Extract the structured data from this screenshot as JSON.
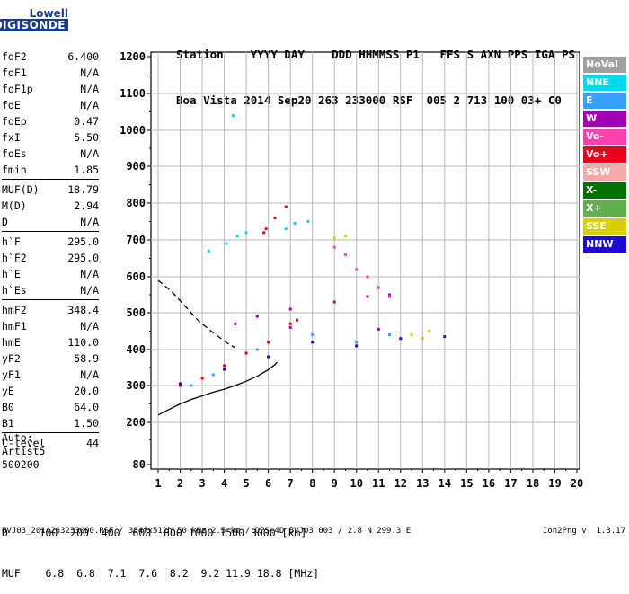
{
  "logo": {
    "line1": "Lowell",
    "line2": "DIGISONDE"
  },
  "header": {
    "labels": "Station    YYYY DAY    DDD HHMMSS P1   FFS S AXN PPS IGA PS",
    "values": "Boa Vista 2014 Sep20 263 233000 RSF  005 2 713 100 03+ C0"
  },
  "params": [
    [
      {
        "name": "foF2",
        "value": "6.400"
      },
      {
        "name": "foF1",
        "value": "N/A"
      },
      {
        "name": "foF1p",
        "value": "N/A"
      },
      {
        "name": "foE",
        "value": "N/A"
      },
      {
        "name": "foEp",
        "value": "0.47"
      },
      {
        "name": "fxI",
        "value": "5.50"
      },
      {
        "name": "foEs",
        "value": "N/A"
      },
      {
        "name": "fmin",
        "value": "1.85"
      }
    ],
    [
      {
        "name": "MUF(D)",
        "value": "18.79"
      },
      {
        "name": "M(D)",
        "value": "2.94"
      },
      {
        "name": "D",
        "value": "N/A"
      }
    ],
    [
      {
        "name": "h`F",
        "value": "295.0"
      },
      {
        "name": "h`F2",
        "value": "295.0"
      },
      {
        "name": "h`E",
        "value": "N/A"
      },
      {
        "name": "h`Es",
        "value": "N/A"
      }
    ],
    [
      {
        "name": "hmF2",
        "value": "348.4"
      },
      {
        "name": "hmF1",
        "value": "N/A"
      },
      {
        "name": "hmE",
        "value": "110.0"
      },
      {
        "name": "yF2",
        "value": "58.9"
      },
      {
        "name": "yF1",
        "value": "N/A"
      },
      {
        "name": "yE",
        "value": "20.0"
      },
      {
        "name": "B0",
        "value": "64.0"
      },
      {
        "name": "B1",
        "value": "1.50"
      }
    ],
    [
      {
        "name": "C-level",
        "value": "44"
      }
    ]
  ],
  "auto": {
    "line1": "Auto:",
    "line2": "Artist5",
    "line3": "500200"
  },
  "legend": [
    {
      "label": "NoVal",
      "color": "#a0a0a0"
    },
    {
      "label": "NNE",
      "color": "#00d8f0"
    },
    {
      "label": "E",
      "color": "#3aa0ff"
    },
    {
      "label": "W",
      "color": "#a000b0"
    },
    {
      "label": "Vo-",
      "color": "#ff40b0"
    },
    {
      "label": "Vo+",
      "color": "#e8001c"
    },
    {
      "label": "SSW",
      "color": "#f4a8a8"
    },
    {
      "label": "X-",
      "color": "#007000"
    },
    {
      "label": "X+",
      "color": "#60b050"
    },
    {
      "label": "SSE",
      "color": "#d8d000"
    },
    {
      "label": "NNW",
      "color": "#1c0ad0"
    }
  ],
  "chart_data": {
    "type": "scatter",
    "xlabel": "",
    "ylabel": "",
    "xlim": [
      1,
      20
    ],
    "ylim": [
      80,
      1200
    ],
    "x_ticks": [
      1,
      2,
      3,
      4,
      5,
      6,
      7,
      8,
      9,
      10,
      11,
      12,
      13,
      14,
      15,
      16,
      17,
      18,
      19,
      20
    ],
    "y_ticks": [
      80,
      200,
      300,
      400,
      500,
      600,
      700,
      800,
      900,
      1000,
      1100,
      1200
    ],
    "grid": true,
    "series": [
      {
        "name": "NNE",
        "color": "#00d8f0",
        "points": [
          [
            4.1,
            690
          ],
          [
            4.6,
            710
          ],
          [
            5.0,
            720
          ],
          [
            6.8,
            730
          ],
          [
            7.2,
            745
          ],
          [
            7.8,
            750
          ],
          [
            4.4,
            1040
          ],
          [
            3.3,
            670
          ]
        ]
      },
      {
        "name": "E",
        "color": "#3aa0ff",
        "points": [
          [
            2.5,
            300
          ],
          [
            3.5,
            330
          ],
          [
            5.5,
            400
          ],
          [
            8.0,
            440
          ],
          [
            10.0,
            420
          ],
          [
            11.5,
            440
          ]
        ]
      },
      {
        "name": "W",
        "color": "#a000b0",
        "points": [
          [
            4.5,
            470
          ],
          [
            5.5,
            490
          ],
          [
            7.0,
            510
          ],
          [
            9.0,
            530
          ],
          [
            10.5,
            545
          ],
          [
            11.5,
            550
          ],
          [
            7.0,
            460
          ],
          [
            11.0,
            455
          ]
        ]
      },
      {
        "name": "Vo-",
        "color": "#ff40b0",
        "points": [
          [
            9.0,
            680
          ],
          [
            9.5,
            660
          ],
          [
            10.0,
            620
          ],
          [
            10.5,
            600
          ],
          [
            11.0,
            570
          ],
          [
            11.5,
            545
          ]
        ]
      },
      {
        "name": "Vo+",
        "color": "#e8001c",
        "points": [
          [
            2.0,
            300
          ],
          [
            3.0,
            320
          ],
          [
            4.0,
            355
          ],
          [
            5.0,
            390
          ],
          [
            6.0,
            420
          ],
          [
            7.0,
            470
          ],
          [
            7.3,
            480
          ],
          [
            5.9,
            730
          ],
          [
            6.3,
            760
          ],
          [
            6.8,
            790
          ],
          [
            5.8,
            720
          ]
        ]
      },
      {
        "name": "SSE",
        "color": "#d8d000",
        "points": [
          [
            9.0,
            705
          ],
          [
            9.5,
            710
          ],
          [
            12.5,
            440
          ],
          [
            13.0,
            430
          ],
          [
            13.3,
            450
          ]
        ]
      },
      {
        "name": "NNW",
        "color": "#1c0ad0",
        "points": [
          [
            2.0,
            305
          ],
          [
            4.0,
            345
          ],
          [
            6.0,
            380
          ],
          [
            8.0,
            420
          ],
          [
            10.0,
            410
          ],
          [
            12.0,
            430
          ],
          [
            14.0,
            435
          ]
        ]
      }
    ],
    "lines": [
      {
        "name": "profile",
        "style": "solid",
        "x": [
          1.0,
          1.5,
          2.0,
          2.5,
          3.0,
          3.5,
          4.0,
          4.5,
          5.0,
          5.5,
          6.0,
          6.3,
          6.4
        ],
        "y": [
          220,
          235,
          250,
          262,
          272,
          282,
          290,
          300,
          312,
          326,
          344,
          358,
          365
        ]
      },
      {
        "name": "trace",
        "style": "dashed",
        "x": [
          1.0,
          1.6,
          2.2,
          2.8,
          3.4,
          3.9,
          4.2,
          4.5
        ],
        "y": [
          590,
          560,
          520,
          480,
          450,
          428,
          415,
          405
        ]
      }
    ]
  },
  "dtable": {
    "d_row": "D     100  200  400  600  800 1000 1500 3000 [km]",
    "muf_row": "MUF    6.8  6.8  7.1  7.6  8.2  9.2 11.9 18.8 [MHz]"
  },
  "footer": "BVJ03_2014263233000.RSF / 384fx512h 50 kHz 2.5 km / DPS-4D BVJ03 003 / 2.8 N 299.3 E",
  "version": "Ion2Png v. 1.3.17"
}
